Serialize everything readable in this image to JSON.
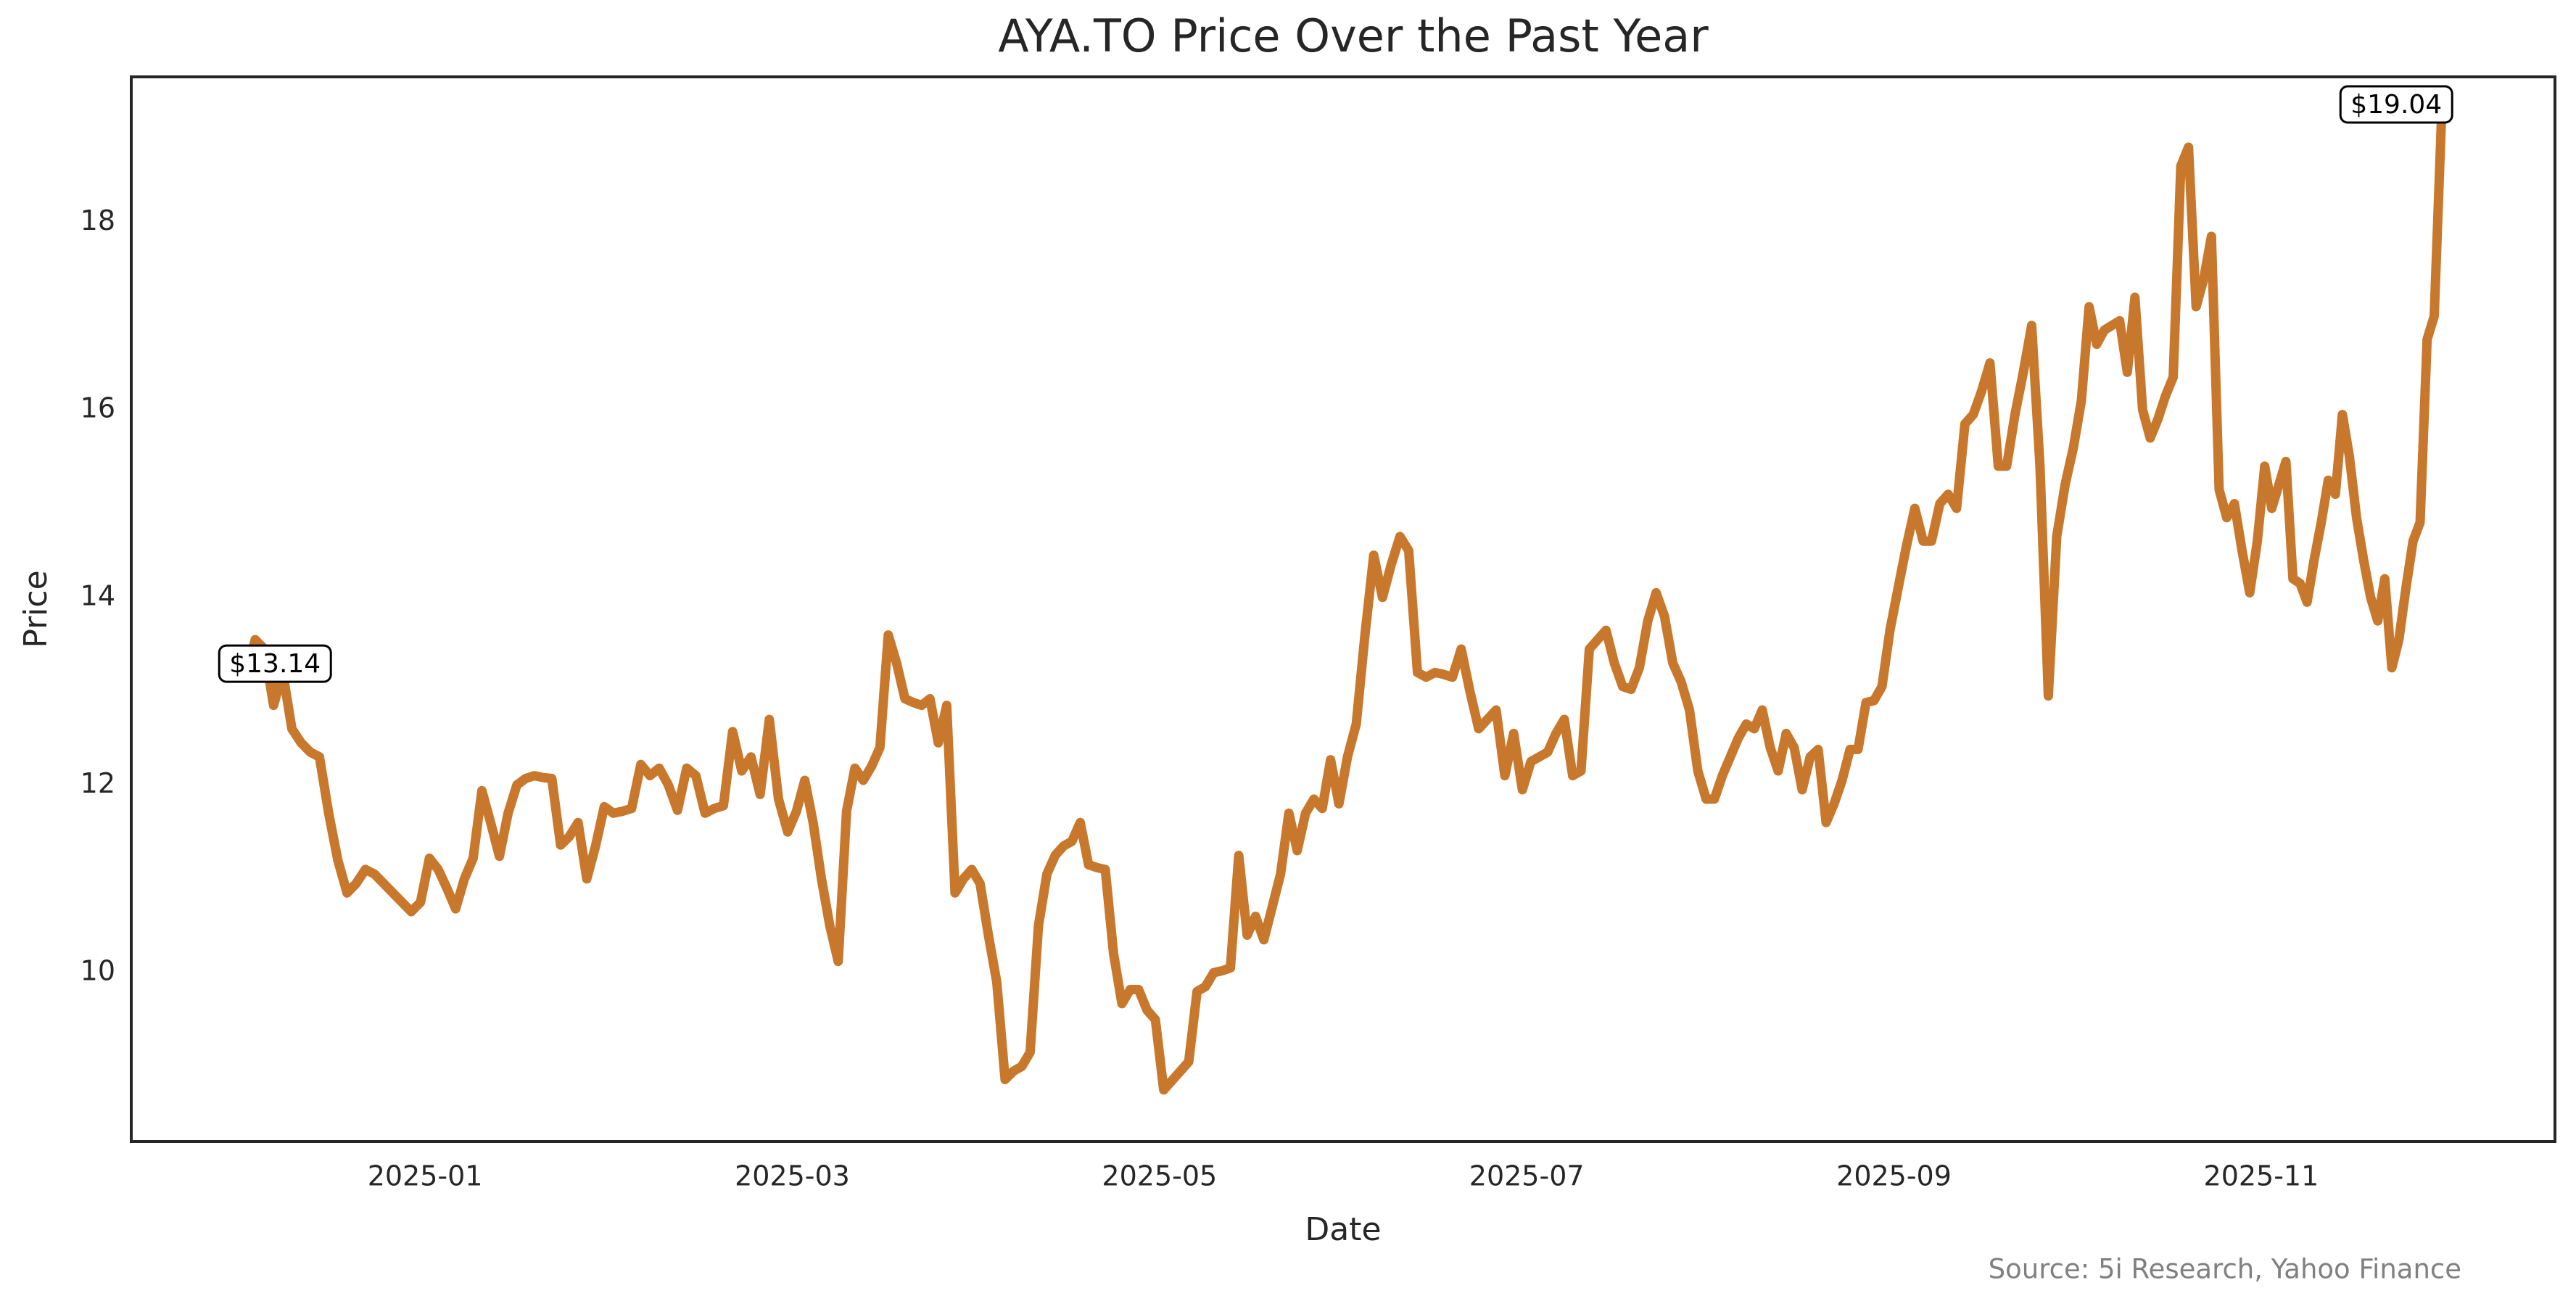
{
  "chart_data": {
    "type": "line",
    "title": "AYA.TO Price Over the Past Year",
    "xlabel": "Date",
    "ylabel": "Price",
    "source": "Source: 5i Research, Yahoo Finance",
    "x": [
      "2024-12",
      "2024-12",
      "2024-12",
      "2024-12",
      "2024-12",
      "2024-12",
      "2024-12",
      "2024-12",
      "2024-12",
      "2024-12",
      "2024-12",
      "2024-12",
      "2024-12",
      "2024-12",
      "2024-12",
      "2024-12",
      "2024-12",
      "2024-12",
      "2024-12",
      "2024-12",
      "2025-01",
      "2025-01",
      "2025-01",
      "2025-01",
      "2025-01",
      "2025-01",
      "2025-01",
      "2025-01",
      "2025-01",
      "2025-01",
      "2025-01",
      "2025-01",
      "2025-01",
      "2025-01",
      "2025-01",
      "2025-01",
      "2025-01",
      "2025-01",
      "2025-01",
      "2025-01",
      "2025-01",
      "2025-02",
      "2025-02",
      "2025-02",
      "2025-02",
      "2025-02",
      "2025-02",
      "2025-02",
      "2025-02",
      "2025-02",
      "2025-02",
      "2025-02",
      "2025-02",
      "2025-02",
      "2025-02",
      "2025-02",
      "2025-02",
      "2025-02",
      "2025-02",
      "2025-02",
      "2025-02",
      "2025-03",
      "2025-03",
      "2025-03",
      "2025-03",
      "2025-03",
      "2025-03",
      "2025-03",
      "2025-03",
      "2025-03",
      "2025-03",
      "2025-03",
      "2025-03",
      "2025-03",
      "2025-03",
      "2025-03",
      "2025-03",
      "2025-03",
      "2025-03",
      "2025-03",
      "2025-03",
      "2025-03",
      "2025-03",
      "2025-04",
      "2025-04",
      "2025-04",
      "2025-04",
      "2025-04",
      "2025-04",
      "2025-04",
      "2025-04",
      "2025-04",
      "2025-04",
      "2025-04",
      "2025-04",
      "2025-04",
      "2025-04",
      "2025-04",
      "2025-04",
      "2025-04",
      "2025-04",
      "2025-04",
      "2025-04",
      "2025-04",
      "2025-04",
      "2025-05",
      "2025-05",
      "2025-05",
      "2025-05",
      "2025-05",
      "2025-05",
      "2025-05",
      "2025-05",
      "2025-05",
      "2025-05",
      "2025-05",
      "2025-05",
      "2025-05",
      "2025-05",
      "2025-05",
      "2025-05",
      "2025-05",
      "2025-05",
      "2025-05",
      "2025-05",
      "2025-05",
      "2025-05",
      "2025-06",
      "2025-06",
      "2025-06",
      "2025-06",
      "2025-06",
      "2025-06",
      "2025-06",
      "2025-06",
      "2025-06",
      "2025-06",
      "2025-06",
      "2025-06",
      "2025-06",
      "2025-06",
      "2025-06",
      "2025-06",
      "2025-06",
      "2025-06",
      "2025-06",
      "2025-06",
      "2025-06",
      "2025-07",
      "2025-07",
      "2025-07",
      "2025-07",
      "2025-07",
      "2025-07",
      "2025-07",
      "2025-07",
      "2025-07",
      "2025-07",
      "2025-07",
      "2025-07",
      "2025-07",
      "2025-07",
      "2025-07",
      "2025-07",
      "2025-07",
      "2025-07",
      "2025-07",
      "2025-07",
      "2025-07",
      "2025-07",
      "2025-08",
      "2025-08",
      "2025-08",
      "2025-08",
      "2025-08",
      "2025-08",
      "2025-08",
      "2025-08",
      "2025-08",
      "2025-08",
      "2025-08",
      "2025-08",
      "2025-08",
      "2025-08",
      "2025-08",
      "2025-08",
      "2025-08",
      "2025-08",
      "2025-08",
      "2025-08",
      "2025-08",
      "2025-08",
      "2025-08",
      "2025-09",
      "2025-09",
      "2025-09",
      "2025-09",
      "2025-09",
      "2025-09",
      "2025-09",
      "2025-09",
      "2025-09",
      "2025-09",
      "2025-09",
      "2025-09",
      "2025-09",
      "2025-09",
      "2025-09",
      "2025-09",
      "2025-09",
      "2025-09",
      "2025-09",
      "2025-09",
      "2025-09",
      "2025-09",
      "2025-10",
      "2025-10",
      "2025-10",
      "2025-10",
      "2025-10",
      "2025-10",
      "2025-10",
      "2025-10",
      "2025-10",
      "2025-10",
      "2025-10",
      "2025-10",
      "2025-10",
      "2025-10",
      "2025-10",
      "2025-10",
      "2025-10",
      "2025-10",
      "2025-10",
      "2025-10",
      "2025-10",
      "2025-10",
      "2025-10",
      "2025-10",
      "2025-11",
      "2025-11",
      "2025-11",
      "2025-11",
      "2025-11",
      "2025-11",
      "2025-11",
      "2025-11",
      "2025-11",
      "2025-11",
      "2025-11",
      "2025-11",
      "2025-11",
      "2025-11",
      "2025-11",
      "2025-11",
      "2025-11",
      "2025-11",
      "2025-11",
      "2025-11",
      "2025-11",
      "2025-11",
      "2025-11",
      "2025-11",
      "2025-11",
      "2025-11"
    ],
    "series": [
      {
        "name": "AYA.TO",
        "color": "#c8782c",
        "values": [
          13.14,
          13.55,
          13.45,
          12.85,
          13.2,
          12.6,
          12.45,
          12.35,
          12.3,
          11.7,
          11.2,
          10.85,
          10.95,
          11.1,
          11.05,
          10.95,
          10.85,
          10.75,
          10.65,
          10.75,
          11.22,
          11.1,
          10.9,
          10.68,
          11.0,
          11.22,
          11.94,
          11.6,
          11.24,
          11.7,
          12.0,
          12.07,
          12.1,
          12.08,
          12.07,
          11.36,
          11.45,
          11.6,
          11.0,
          11.35,
          11.77,
          11.7,
          11.72,
          11.75,
          12.22,
          12.1,
          12.18,
          12.0,
          11.73,
          12.18,
          12.1,
          11.7,
          11.75,
          11.78,
          12.57,
          12.15,
          12.3,
          11.9,
          12.7,
          11.85,
          11.5,
          11.72,
          12.05,
          11.6,
          11.0,
          10.5,
          10.12,
          11.72,
          12.18,
          12.05,
          12.2,
          12.4,
          13.6,
          13.3,
          12.92,
          12.88,
          12.85,
          12.92,
          12.45,
          12.85,
          10.85,
          11.0,
          11.1,
          10.95,
          10.4,
          9.9,
          8.86,
          8.95,
          9.0,
          9.15,
          10.5,
          11.05,
          11.25,
          11.35,
          11.4,
          11.6,
          11.15,
          11.12,
          11.1,
          10.2,
          9.67,
          9.82,
          9.82,
          9.6,
          9.5,
          8.75,
          8.85,
          8.95,
          9.05,
          9.8,
          9.85,
          10.0,
          10.02,
          10.05,
          11.25,
          10.4,
          10.6,
          10.35,
          10.7,
          11.05,
          11.7,
          11.3,
          11.7,
          11.85,
          11.75,
          12.27,
          11.8,
          12.3,
          12.65,
          13.6,
          14.45,
          14.0,
          14.35,
          14.65,
          14.5,
          13.2,
          13.15,
          13.2,
          13.18,
          13.15,
          13.45,
          13.0,
          12.6,
          12.7,
          12.8,
          12.1,
          12.55,
          11.95,
          12.25,
          12.3,
          12.35,
          12.55,
          12.7,
          12.1,
          12.15,
          13.45,
          13.55,
          13.65,
          13.3,
          13.05,
          13.02,
          13.25,
          13.75,
          14.05,
          13.8,
          13.3,
          13.1,
          12.8,
          12.15,
          11.85,
          11.85,
          12.1,
          12.3,
          12.5,
          12.65,
          12.6,
          12.8,
          12.4,
          12.15,
          12.55,
          12.4,
          11.95,
          12.3,
          12.38,
          11.6,
          11.8,
          12.05,
          12.38,
          12.38,
          12.88,
          12.9,
          13.05,
          13.65,
          14.1,
          14.55,
          14.95,
          14.6,
          14.6,
          15.0,
          15.1,
          14.95,
          15.85,
          15.95,
          16.2,
          16.5,
          15.4,
          15.4,
          15.95,
          16.4,
          16.9,
          15.4,
          12.95,
          14.65,
          15.2,
          15.6,
          16.1,
          17.1,
          16.7,
          16.85,
          16.9,
          16.95,
          16.4,
          17.2,
          16.0,
          15.7,
          15.9,
          16.15,
          16.35,
          18.6,
          18.8,
          17.1,
          17.4,
          17.85,
          15.15,
          14.85,
          15.0,
          14.5,
          14.05,
          14.6,
          15.4,
          14.95,
          15.2,
          15.45,
          14.2,
          14.15,
          13.95,
          14.4,
          14.8,
          15.25,
          15.1,
          15.95,
          15.5,
          14.85,
          14.4,
          14.0,
          13.75,
          14.2,
          13.25,
          13.55,
          14.1,
          14.6,
          14.8,
          16.75,
          17.0,
          19.04
        ]
      }
    ],
    "annotations": [
      {
        "text": "$13.14"
      },
      {
        "text": "$19.04"
      }
    ],
    "xlim": [
      "2024-12",
      "2025-11"
    ],
    "xticks": [
      "2025-01",
      "2025-03",
      "2025-05",
      "2025-07",
      "2025-09",
      "2025-11"
    ],
    "ylim": [
      8.2,
      19.55
    ],
    "yticks": [
      10,
      12,
      14,
      16,
      18
    ],
    "grid": false
  }
}
